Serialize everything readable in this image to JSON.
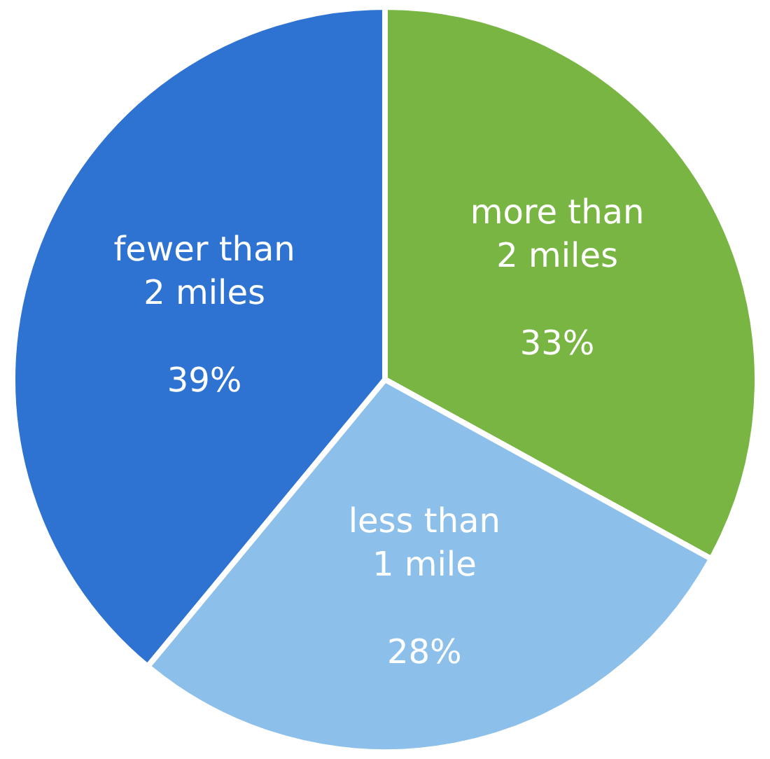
{
  "chart_data": {
    "type": "pie",
    "categories": [
      "more than\n2 miles",
      "less than\n1 mile",
      "fewer than\n2 miles"
    ],
    "values": [
      33,
      28,
      39
    ],
    "value_labels": [
      "33%",
      "28%",
      "39%"
    ],
    "colors": [
      "#78b543",
      "#8cc0ea",
      "#2e72d2"
    ],
    "legend": false
  }
}
